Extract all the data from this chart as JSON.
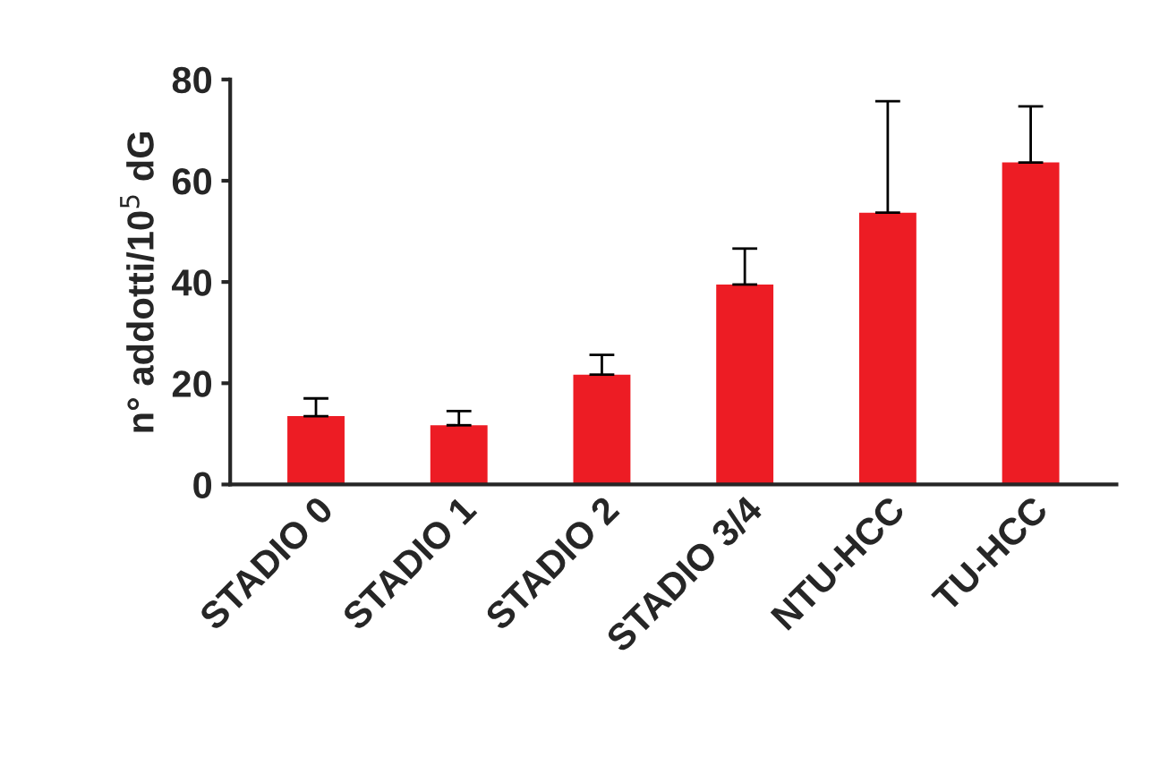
{
  "chart_data": {
    "type": "bar",
    "ylabel": "n° addotti/10$^{5}$ dG",
    "categories": [
      "STADIO 0",
      "STADIO 1",
      "STADIO 2",
      "STADIO 3/4",
      "NTU-HCC",
      "TU-HCC"
    ],
    "values": [
      13.5,
      11.7,
      21.7,
      39.5,
      53.7,
      63.6
    ],
    "errors": [
      [
        13.5,
        17
      ],
      [
        11.7,
        14.5
      ],
      [
        21.7,
        25.6
      ],
      [
        39.5,
        46.6
      ],
      [
        53.7,
        75.7
      ],
      [
        63.6,
        74.7
      ]
    ],
    "color": "#ed1c24",
    "ylim": [
      0,
      80
    ],
    "yticks": [
      0,
      20,
      40,
      60,
      80
    ],
    "grid": false,
    "legend": false
  }
}
